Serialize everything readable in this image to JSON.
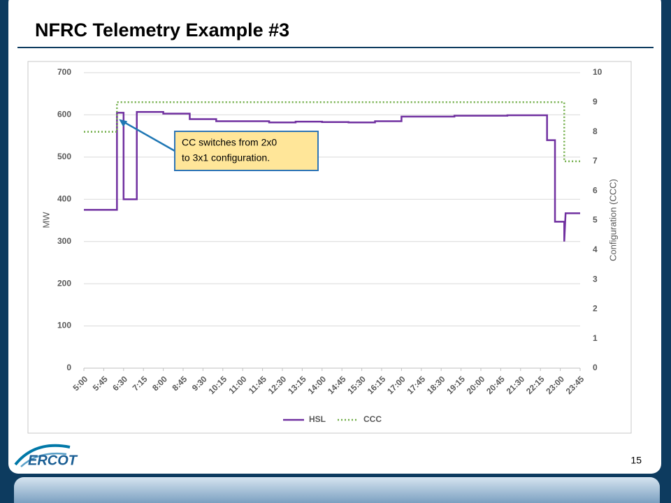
{
  "slide": {
    "title": "NFRC Telemetry Example #3",
    "page_number": "15",
    "logo": "ERCOT"
  },
  "chart_data": {
    "type": "line",
    "ylabel": "MW",
    "y2label": "Configuration (CCC)",
    "xlim": [
      5,
      23.75
    ],
    "xticks": [
      {
        "value": 5,
        "label": "5:00"
      },
      {
        "value": 5.75,
        "label": "5:45"
      },
      {
        "value": 6.5,
        "label": "6:30"
      },
      {
        "value": 7.25,
        "label": "7:15"
      },
      {
        "value": 8,
        "label": "8:00"
      },
      {
        "value": 8.75,
        "label": "8:45"
      },
      {
        "value": 9.5,
        "label": "9:30"
      },
      {
        "value": 10.25,
        "label": "10:15"
      },
      {
        "value": 11,
        "label": "11:00"
      },
      {
        "value": 11.75,
        "label": "11:45"
      },
      {
        "value": 12.5,
        "label": "12:30"
      },
      {
        "value": 13.25,
        "label": "13:15"
      },
      {
        "value": 14,
        "label": "14:00"
      },
      {
        "value": 14.75,
        "label": "14:45"
      },
      {
        "value": 15.5,
        "label": "15:30"
      },
      {
        "value": 16.25,
        "label": "16:15"
      },
      {
        "value": 17,
        "label": "17:00"
      },
      {
        "value": 17.75,
        "label": "17:45"
      },
      {
        "value": 18.5,
        "label": "18:30"
      },
      {
        "value": 19.25,
        "label": "19:15"
      },
      {
        "value": 20,
        "label": "20:00"
      },
      {
        "value": 20.75,
        "label": "20:45"
      },
      {
        "value": 21.5,
        "label": "21:30"
      },
      {
        "value": 22.25,
        "label": "22:15"
      },
      {
        "value": 23,
        "label": "23:00"
      },
      {
        "value": 23.75,
        "label": "23:45"
      }
    ],
    "ylim": [
      0,
      700
    ],
    "yticks": [
      0,
      100,
      200,
      300,
      400,
      500,
      600,
      700
    ],
    "y2lim": [
      0,
      10
    ],
    "y2ticks": [
      0,
      1,
      2,
      3,
      4,
      5,
      6,
      7,
      8,
      9,
      10
    ],
    "grid": true,
    "legend": "bottom",
    "series": [
      {
        "name": "HSL",
        "color": "#7030a0",
        "style": "solid",
        "x": [
          5,
          6.25,
          6.25,
          6.5,
          6.5,
          7,
          7,
          8,
          8,
          9,
          9,
          10,
          10,
          12,
          12,
          13,
          13,
          14,
          14,
          15,
          15,
          16,
          16,
          17,
          17,
          19,
          19,
          21,
          21,
          22.5,
          22.5,
          22.8,
          22.8,
          23.15,
          23.15,
          23.2,
          23.2,
          23.75
        ],
        "values": [
          375,
          375,
          605,
          605,
          400,
          400,
          607,
          607,
          603,
          603,
          590,
          590,
          585,
          585,
          582,
          582,
          584,
          584,
          583,
          583,
          582,
          582,
          585,
          585,
          596,
          596,
          598,
          598,
          599,
          599,
          540,
          540,
          347,
          347,
          300,
          367,
          367,
          367
        ]
      },
      {
        "name": "CCC",
        "color": "#70ad47",
        "style": "dotted",
        "axis": "y2",
        "x": [
          5,
          6.25,
          6.25,
          23.15,
          23.15,
          23.75
        ],
        "values": [
          8,
          8,
          9,
          9,
          7,
          7
        ]
      }
    ],
    "annotation": {
      "lines": [
        "CC switches from 2x0",
        "to 3x1 configuration."
      ],
      "x": 6.3,
      "y": 590
    }
  }
}
